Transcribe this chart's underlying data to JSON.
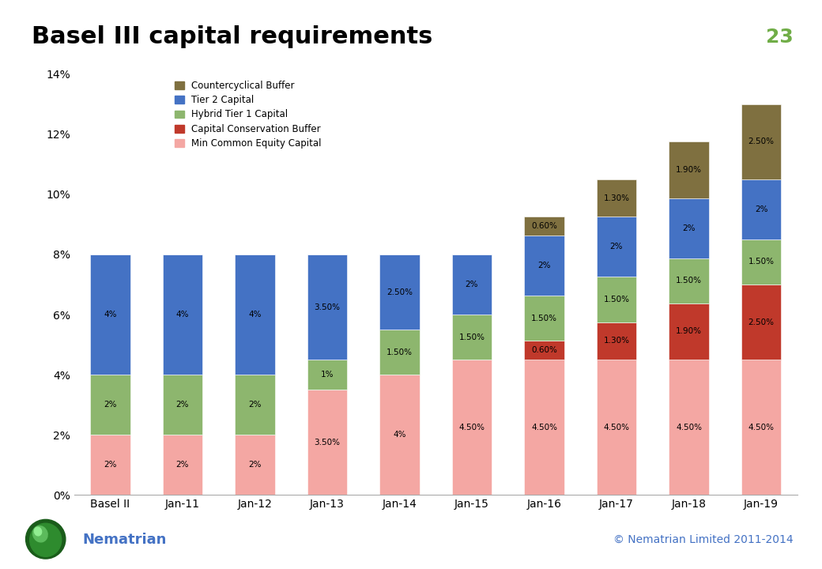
{
  "title": "Basel III capital requirements",
  "page_number": "23",
  "categories": [
    "Basel II",
    "Jan-11",
    "Jan-12",
    "Jan-13",
    "Jan-14",
    "Jan-15",
    "Jan-16",
    "Jan-17",
    "Jan-18",
    "Jan-19"
  ],
  "series": {
    "Min Common Equity Capital": [
      2.0,
      2.0,
      2.0,
      3.5,
      4.0,
      4.5,
      4.5,
      4.5,
      4.5,
      4.5
    ],
    "Capital Conservation Buffer": [
      0.0,
      0.0,
      0.0,
      0.0,
      0.0,
      0.0,
      0.625,
      1.25,
      1.875,
      2.5
    ],
    "Hybrid Tier 1 Capital": [
      2.0,
      2.0,
      2.0,
      1.0,
      1.5,
      1.5,
      1.5,
      1.5,
      1.5,
      1.5
    ],
    "Tier 2 Capital": [
      4.0,
      4.0,
      4.0,
      3.5,
      2.5,
      2.0,
      2.0,
      2.0,
      2.0,
      2.0
    ],
    "Countercyclical Buffer": [
      0.0,
      0.0,
      0.0,
      0.0,
      0.0,
      0.0,
      0.625,
      1.25,
      1.875,
      2.5
    ]
  },
  "labels": {
    "Min Common Equity Capital": [
      "2%",
      "2%",
      "2%",
      "3.50%",
      "4%",
      "4.50%",
      "4.50%",
      "4.50%",
      "4.50%",
      "4.50%"
    ],
    "Capital Conservation Buffer": [
      "",
      "",
      "",
      "",
      "",
      "",
      "0.60%",
      "1.30%",
      "1.90%",
      "2.50%"
    ],
    "Hybrid Tier 1 Capital": [
      "2%",
      "2%",
      "2%",
      "1%",
      "1.50%",
      "1.50%",
      "1.50%",
      "1.50%",
      "1.50%",
      "1.50%"
    ],
    "Tier 2 Capital": [
      "4%",
      "4%",
      "4%",
      "3.50%",
      "2.50%",
      "2%",
      "2%",
      "2%",
      "2%",
      "2%"
    ],
    "Countercyclical Buffer": [
      "",
      "",
      "",
      "",
      "",
      "",
      "0.60%",
      "1.30%",
      "1.90%",
      "2.50%"
    ]
  },
  "colors": {
    "Min Common Equity Capital": "#F4A7A3",
    "Capital Conservation Buffer": "#C0392B",
    "Hybrid Tier 1 Capital": "#8DB66E",
    "Tier 2 Capital": "#4472C4",
    "Countercyclical Buffer": "#7F7040"
  },
  "legend_order": [
    "Countercyclical Buffer",
    "Tier 2 Capital",
    "Hybrid Tier 1 Capital",
    "Capital Conservation Buffer",
    "Min Common Equity Capital"
  ],
  "ylim": [
    0,
    0.14
  ],
  "yticks": [
    0,
    0.02,
    0.04,
    0.06,
    0.08,
    0.1,
    0.12,
    0.14
  ],
  "ytick_labels": [
    "0%",
    "2%",
    "4%",
    "6%",
    "8%",
    "10%",
    "12%",
    "14%"
  ],
  "title_color": "#000000",
  "title_fontsize": 22,
  "header_line_color": "#4472C4",
  "page_num_color": "#70AD47",
  "footer_text_color": "#4472C4",
  "background_color": "#FFFFFF",
  "bar_width": 0.55
}
